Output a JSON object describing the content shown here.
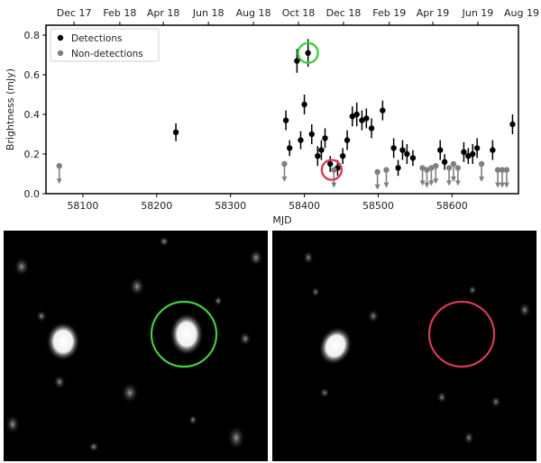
{
  "chart_data": {
    "type": "scatter",
    "xlabel": "MJD",
    "ylabel": "Brightness (mJy)",
    "xlim": [
      58050,
      58690
    ],
    "ylim": [
      0,
      0.85
    ],
    "x_ticks": [
      58100,
      58200,
      58300,
      58400,
      58500,
      58600
    ],
    "y_ticks": [
      0.0,
      0.2,
      0.4,
      0.6,
      0.8
    ],
    "top_axis_ticks": [
      {
        "label": "Dec 17",
        "mjd": 58088
      },
      {
        "label": "Feb 18",
        "mjd": 58150
      },
      {
        "label": "Apr 18",
        "mjd": 58209
      },
      {
        "label": "Jun 18",
        "mjd": 58270
      },
      {
        "label": "Aug 18",
        "mjd": 58331
      },
      {
        "label": "Oct 18",
        "mjd": 58392
      },
      {
        "label": "Dec 18",
        "mjd": 58453
      },
      {
        "label": "Feb 19",
        "mjd": 58515
      },
      {
        "label": "Apr 19",
        "mjd": 58574
      },
      {
        "label": "Jun 19",
        "mjd": 58635
      },
      {
        "label": "Aug 19",
        "mjd": 58696
      }
    ],
    "legend_position": "top-left",
    "series": [
      {
        "name": "Detections",
        "color": "#000000",
        "points": [
          {
            "x": 58226,
            "y": 0.31,
            "err": 0.045
          },
          {
            "x": 58375,
            "y": 0.37,
            "err": 0.05
          },
          {
            "x": 58380,
            "y": 0.23,
            "err": 0.04
          },
          {
            "x": 58390,
            "y": 0.67,
            "err": 0.06
          },
          {
            "x": 58395,
            "y": 0.27,
            "err": 0.045
          },
          {
            "x": 58400,
            "y": 0.45,
            "err": 0.05
          },
          {
            "x": 58405,
            "y": 0.71,
            "err": 0.07
          },
          {
            "x": 58410,
            "y": 0.3,
            "err": 0.05
          },
          {
            "x": 58418,
            "y": 0.19,
            "err": 0.05
          },
          {
            "x": 58423,
            "y": 0.22,
            "err": 0.05
          },
          {
            "x": 58428,
            "y": 0.28,
            "err": 0.05
          },
          {
            "x": 58435,
            "y": 0.15,
            "err": 0.04
          },
          {
            "x": 58445,
            "y": 0.13,
            "err": 0.04
          },
          {
            "x": 58452,
            "y": 0.19,
            "err": 0.04
          },
          {
            "x": 58458,
            "y": 0.27,
            "err": 0.05
          },
          {
            "x": 58465,
            "y": 0.39,
            "err": 0.05
          },
          {
            "x": 58471,
            "y": 0.4,
            "err": 0.06
          },
          {
            "x": 58478,
            "y": 0.37,
            "err": 0.05
          },
          {
            "x": 58484,
            "y": 0.38,
            "err": 0.05
          },
          {
            "x": 58491,
            "y": 0.33,
            "err": 0.05
          },
          {
            "x": 58506,
            "y": 0.42,
            "err": 0.05
          },
          {
            "x": 58521,
            "y": 0.23,
            "err": 0.05
          },
          {
            "x": 58527,
            "y": 0.13,
            "err": 0.04
          },
          {
            "x": 58533,
            "y": 0.22,
            "err": 0.05
          },
          {
            "x": 58539,
            "y": 0.2,
            "err": 0.05
          },
          {
            "x": 58547,
            "y": 0.18,
            "err": 0.04
          },
          {
            "x": 58584,
            "y": 0.22,
            "err": 0.05
          },
          {
            "x": 58590,
            "y": 0.16,
            "err": 0.04
          },
          {
            "x": 58616,
            "y": 0.21,
            "err": 0.05
          },
          {
            "x": 58622,
            "y": 0.19,
            "err": 0.04
          },
          {
            "x": 58628,
            "y": 0.2,
            "err": 0.05
          },
          {
            "x": 58634,
            "y": 0.23,
            "err": 0.05
          },
          {
            "x": 58655,
            "y": 0.22,
            "err": 0.05
          },
          {
            "x": 58682,
            "y": 0.35,
            "err": 0.05
          }
        ]
      },
      {
        "name": "Non-detections",
        "color": "#808080",
        "upper_limits": true,
        "points": [
          {
            "x": 58068,
            "y": 0.14
          },
          {
            "x": 58373,
            "y": 0.15
          },
          {
            "x": 58440,
            "y": 0.12
          },
          {
            "x": 58499,
            "y": 0.11
          },
          {
            "x": 58511,
            "y": 0.12
          },
          {
            "x": 58560,
            "y": 0.13
          },
          {
            "x": 58566,
            "y": 0.12
          },
          {
            "x": 58572,
            "y": 0.13
          },
          {
            "x": 58578,
            "y": 0.14
          },
          {
            "x": 58596,
            "y": 0.13
          },
          {
            "x": 58602,
            "y": 0.15
          },
          {
            "x": 58608,
            "y": 0.13
          },
          {
            "x": 58640,
            "y": 0.15
          },
          {
            "x": 58662,
            "y": 0.12
          },
          {
            "x": 58668,
            "y": 0.12
          },
          {
            "x": 58674,
            "y": 0.12
          }
        ]
      }
    ],
    "circle_markers": [
      {
        "x": 58405,
        "y": 0.71,
        "color": "#44cc44"
      },
      {
        "x": 58437,
        "y": 0.12,
        "color": "#d63a55"
      }
    ]
  },
  "images": {
    "left_circle_color": "#44cc44",
    "right_circle_color": "#d63a55"
  }
}
